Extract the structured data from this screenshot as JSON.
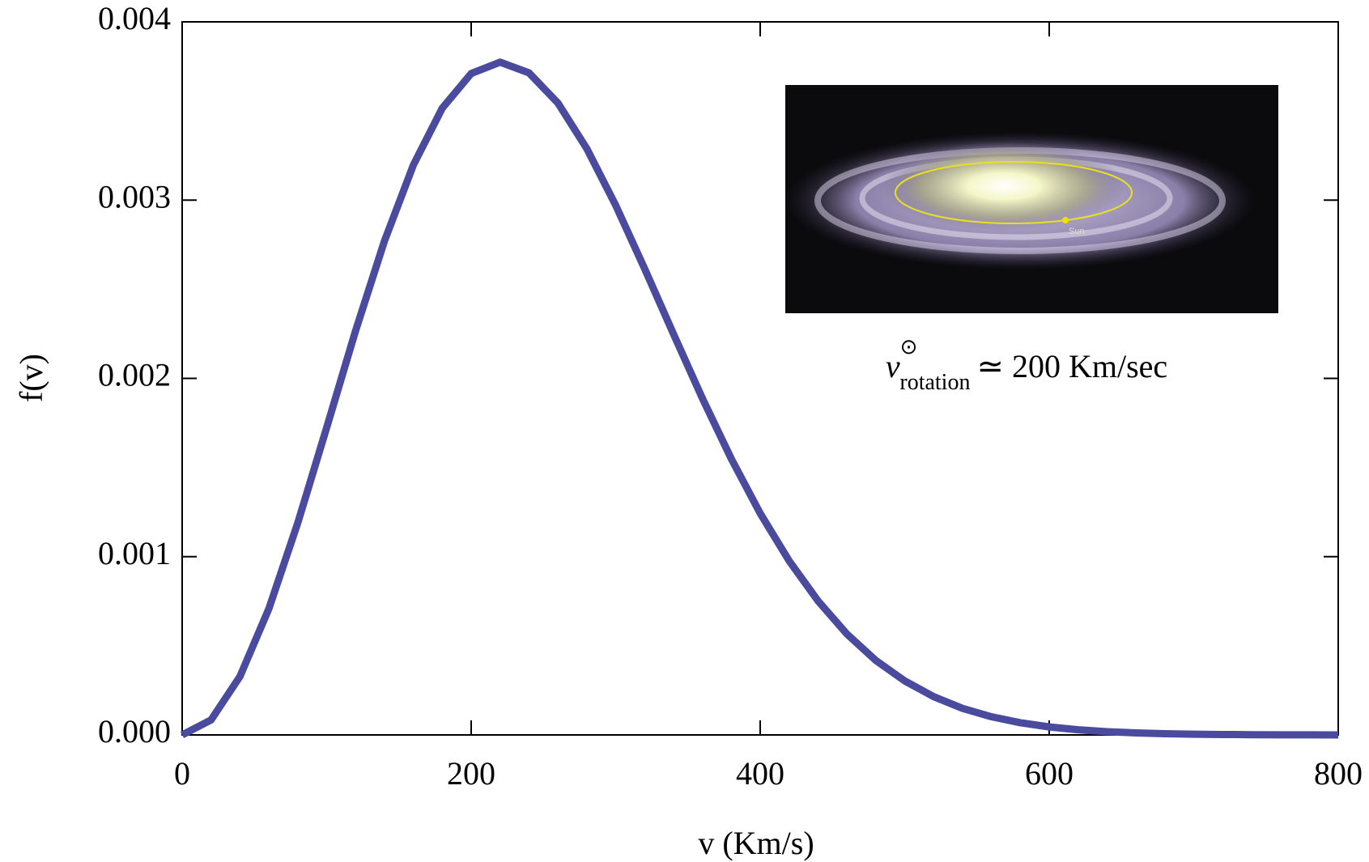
{
  "chart_data": {
    "type": "line",
    "x_label": "v (Km/s)",
    "y_label": "f(v)",
    "x": [
      0,
      20,
      40,
      60,
      80,
      100,
      120,
      140,
      160,
      180,
      200,
      220,
      240,
      260,
      280,
      300,
      320,
      340,
      360,
      380,
      400,
      420,
      440,
      460,
      480,
      500,
      520,
      540,
      560,
      580,
      600,
      620,
      640,
      660,
      680,
      700,
      720,
      740,
      760,
      780,
      800
    ],
    "series": [
      {
        "color": "#4a4a9e",
        "values": [
          0,
          8.4e-05,
          0.000328,
          0.000708,
          0.001189,
          0.001724,
          0.002267,
          0.002771,
          0.003197,
          0.003516,
          0.00371,
          0.003774,
          0.003714,
          0.003545,
          0.003289,
          0.002971,
          0.002616,
          0.002249,
          0.001888,
          0.001549,
          0.001243,
          0.000977,
          0.000752,
          0.000566,
          0.000418,
          0.000303,
          0.000215,
          0.000149,
          0.000102,
          6.84e-05,
          4.49e-05,
          2.9e-05,
          1.83e-05,
          1.14e-05,
          6.9e-06,
          4.2e-06,
          2.4e-06,
          1.4e-06,
          8e-07,
          4e-07,
          2e-07
        ]
      }
    ],
    "xlim": [
      0,
      800
    ],
    "xticks": [
      0,
      200,
      400,
      600,
      800
    ],
    "ylim": [
      0,
      0.004
    ],
    "yticks": [
      {
        "value": 0,
        "label": "0.000"
      },
      {
        "value": 0.001,
        "label": "0.001"
      },
      {
        "value": 0.002,
        "label": "0.002"
      },
      {
        "value": 0.003,
        "label": "0.003"
      },
      {
        "value": 0.004,
        "label": "0.004"
      }
    ],
    "inset_label": "Sun",
    "annotation": {
      "symbol": "v",
      "superscript": "⊙",
      "subscript": "rotation",
      "text": "≃ 200 Km/sec"
    }
  }
}
